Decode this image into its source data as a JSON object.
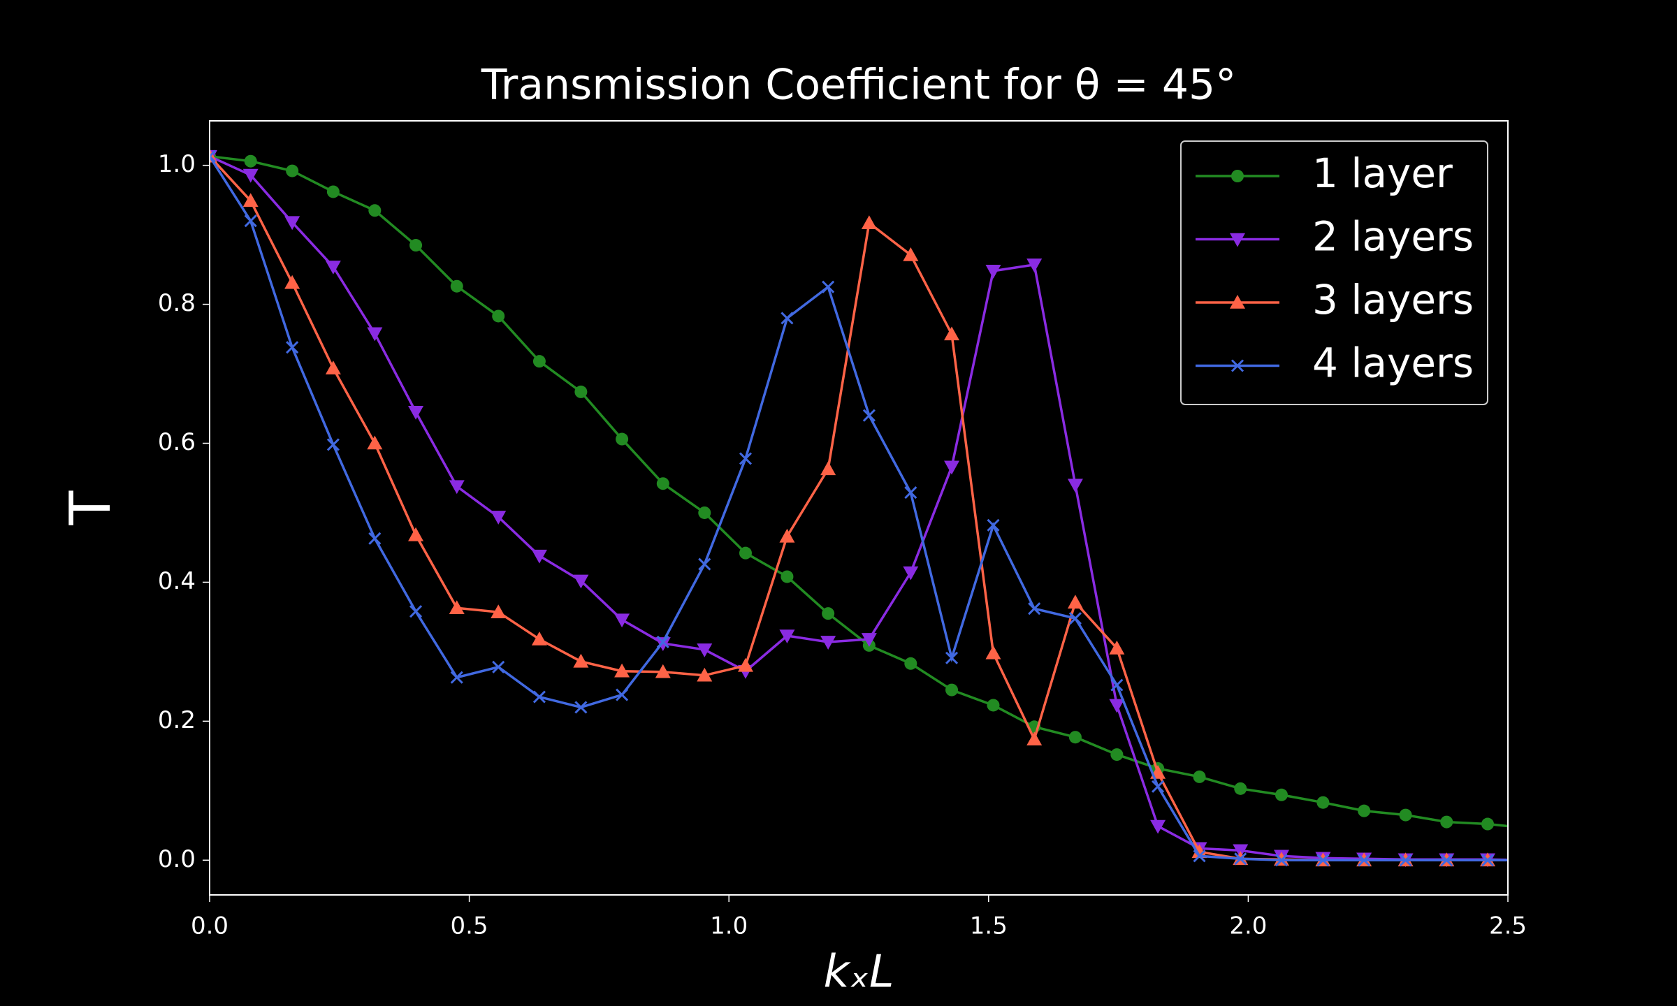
{
  "chart_data": {
    "type": "line",
    "title": "Transmission Coefficient for θ = 45°",
    "xlabel": "kₓL",
    "ylabel": "T",
    "x": [
      0,
      0.079,
      0.159,
      0.238,
      0.318,
      0.397,
      0.476,
      0.556,
      0.635,
      0.715,
      0.794,
      0.873,
      0.953,
      1.032,
      1.112,
      1.191,
      1.27,
      1.35,
      1.429,
      1.509,
      1.588,
      1.667,
      1.747,
      1.826,
      1.906,
      1.985,
      2.064,
      2.144,
      2.223,
      2.303,
      2.382,
      2.461,
      2.541
    ],
    "series": [
      {
        "name": "1 layer",
        "color": "#228b22",
        "marker": "circle",
        "values": [
          1.013,
          1.006,
          0.992,
          0.962,
          0.935,
          0.885,
          0.826,
          0.783,
          0.718,
          0.674,
          0.606,
          0.542,
          0.5,
          0.442,
          0.408,
          0.355,
          0.309,
          0.283,
          0.245,
          0.223,
          0.192,
          0.177,
          0.152,
          0.132,
          0.12,
          0.103,
          0.094,
          0.083,
          0.071,
          0.065,
          0.055,
          0.052,
          0.046
        ]
      },
      {
        "name": "2 layers",
        "color": "#8a2be2",
        "marker": "triangle-down",
        "values": [
          1.013,
          0.986,
          0.918,
          0.854,
          0.758,
          0.645,
          0.538,
          0.494,
          0.438,
          0.402,
          0.346,
          0.312,
          0.303,
          0.272,
          0.323,
          0.314,
          0.318,
          0.414,
          0.566,
          0.848,
          0.857,
          0.54,
          0.223,
          0.049,
          0.017,
          0.014,
          0.006,
          0.003,
          0.002,
          0.001,
          0.001,
          0.001,
          0
        ]
      },
      {
        "name": "3 layers",
        "color": "#ff6347",
        "marker": "triangle-up",
        "values": [
          1.013,
          0.949,
          0.831,
          0.708,
          0.6,
          0.468,
          0.363,
          0.357,
          0.318,
          0.286,
          0.272,
          0.271,
          0.266,
          0.28,
          0.466,
          0.563,
          0.917,
          0.871,
          0.757,
          0.298,
          0.174,
          0.371,
          0.305,
          0.126,
          0.012,
          0.002,
          0.001,
          0,
          0,
          0,
          0,
          0,
          0
        ]
      },
      {
        "name": "4 layers",
        "color": "#4169e1",
        "marker": "x",
        "values": [
          1.013,
          0.92,
          0.738,
          0.598,
          0.463,
          0.358,
          0.263,
          0.278,
          0.235,
          0.22,
          0.238,
          0.314,
          0.426,
          0.578,
          0.78,
          0.825,
          0.64,
          0.529,
          0.291,
          0.482,
          0.362,
          0.348,
          0.252,
          0.106,
          0.006,
          0.002,
          0,
          0,
          0,
          0,
          0,
          0,
          0
        ]
      }
    ],
    "xlim": [
      0,
      2.5
    ],
    "xticks": [
      {
        "value": 0,
        "label": "0.0"
      },
      0.5,
      {
        "value": 1,
        "label": "1.0"
      },
      1.5,
      {
        "value": 2,
        "label": "2.0"
      },
      2.5
    ],
    "ylim": [
      -0.05,
      1.064
    ],
    "yticks": [
      {
        "value": 0,
        "label": "0.0"
      },
      0.2,
      0.4,
      0.6,
      0.8,
      {
        "value": 1,
        "label": "1.0"
      }
    ],
    "grid": false,
    "legend": "upper right"
  }
}
